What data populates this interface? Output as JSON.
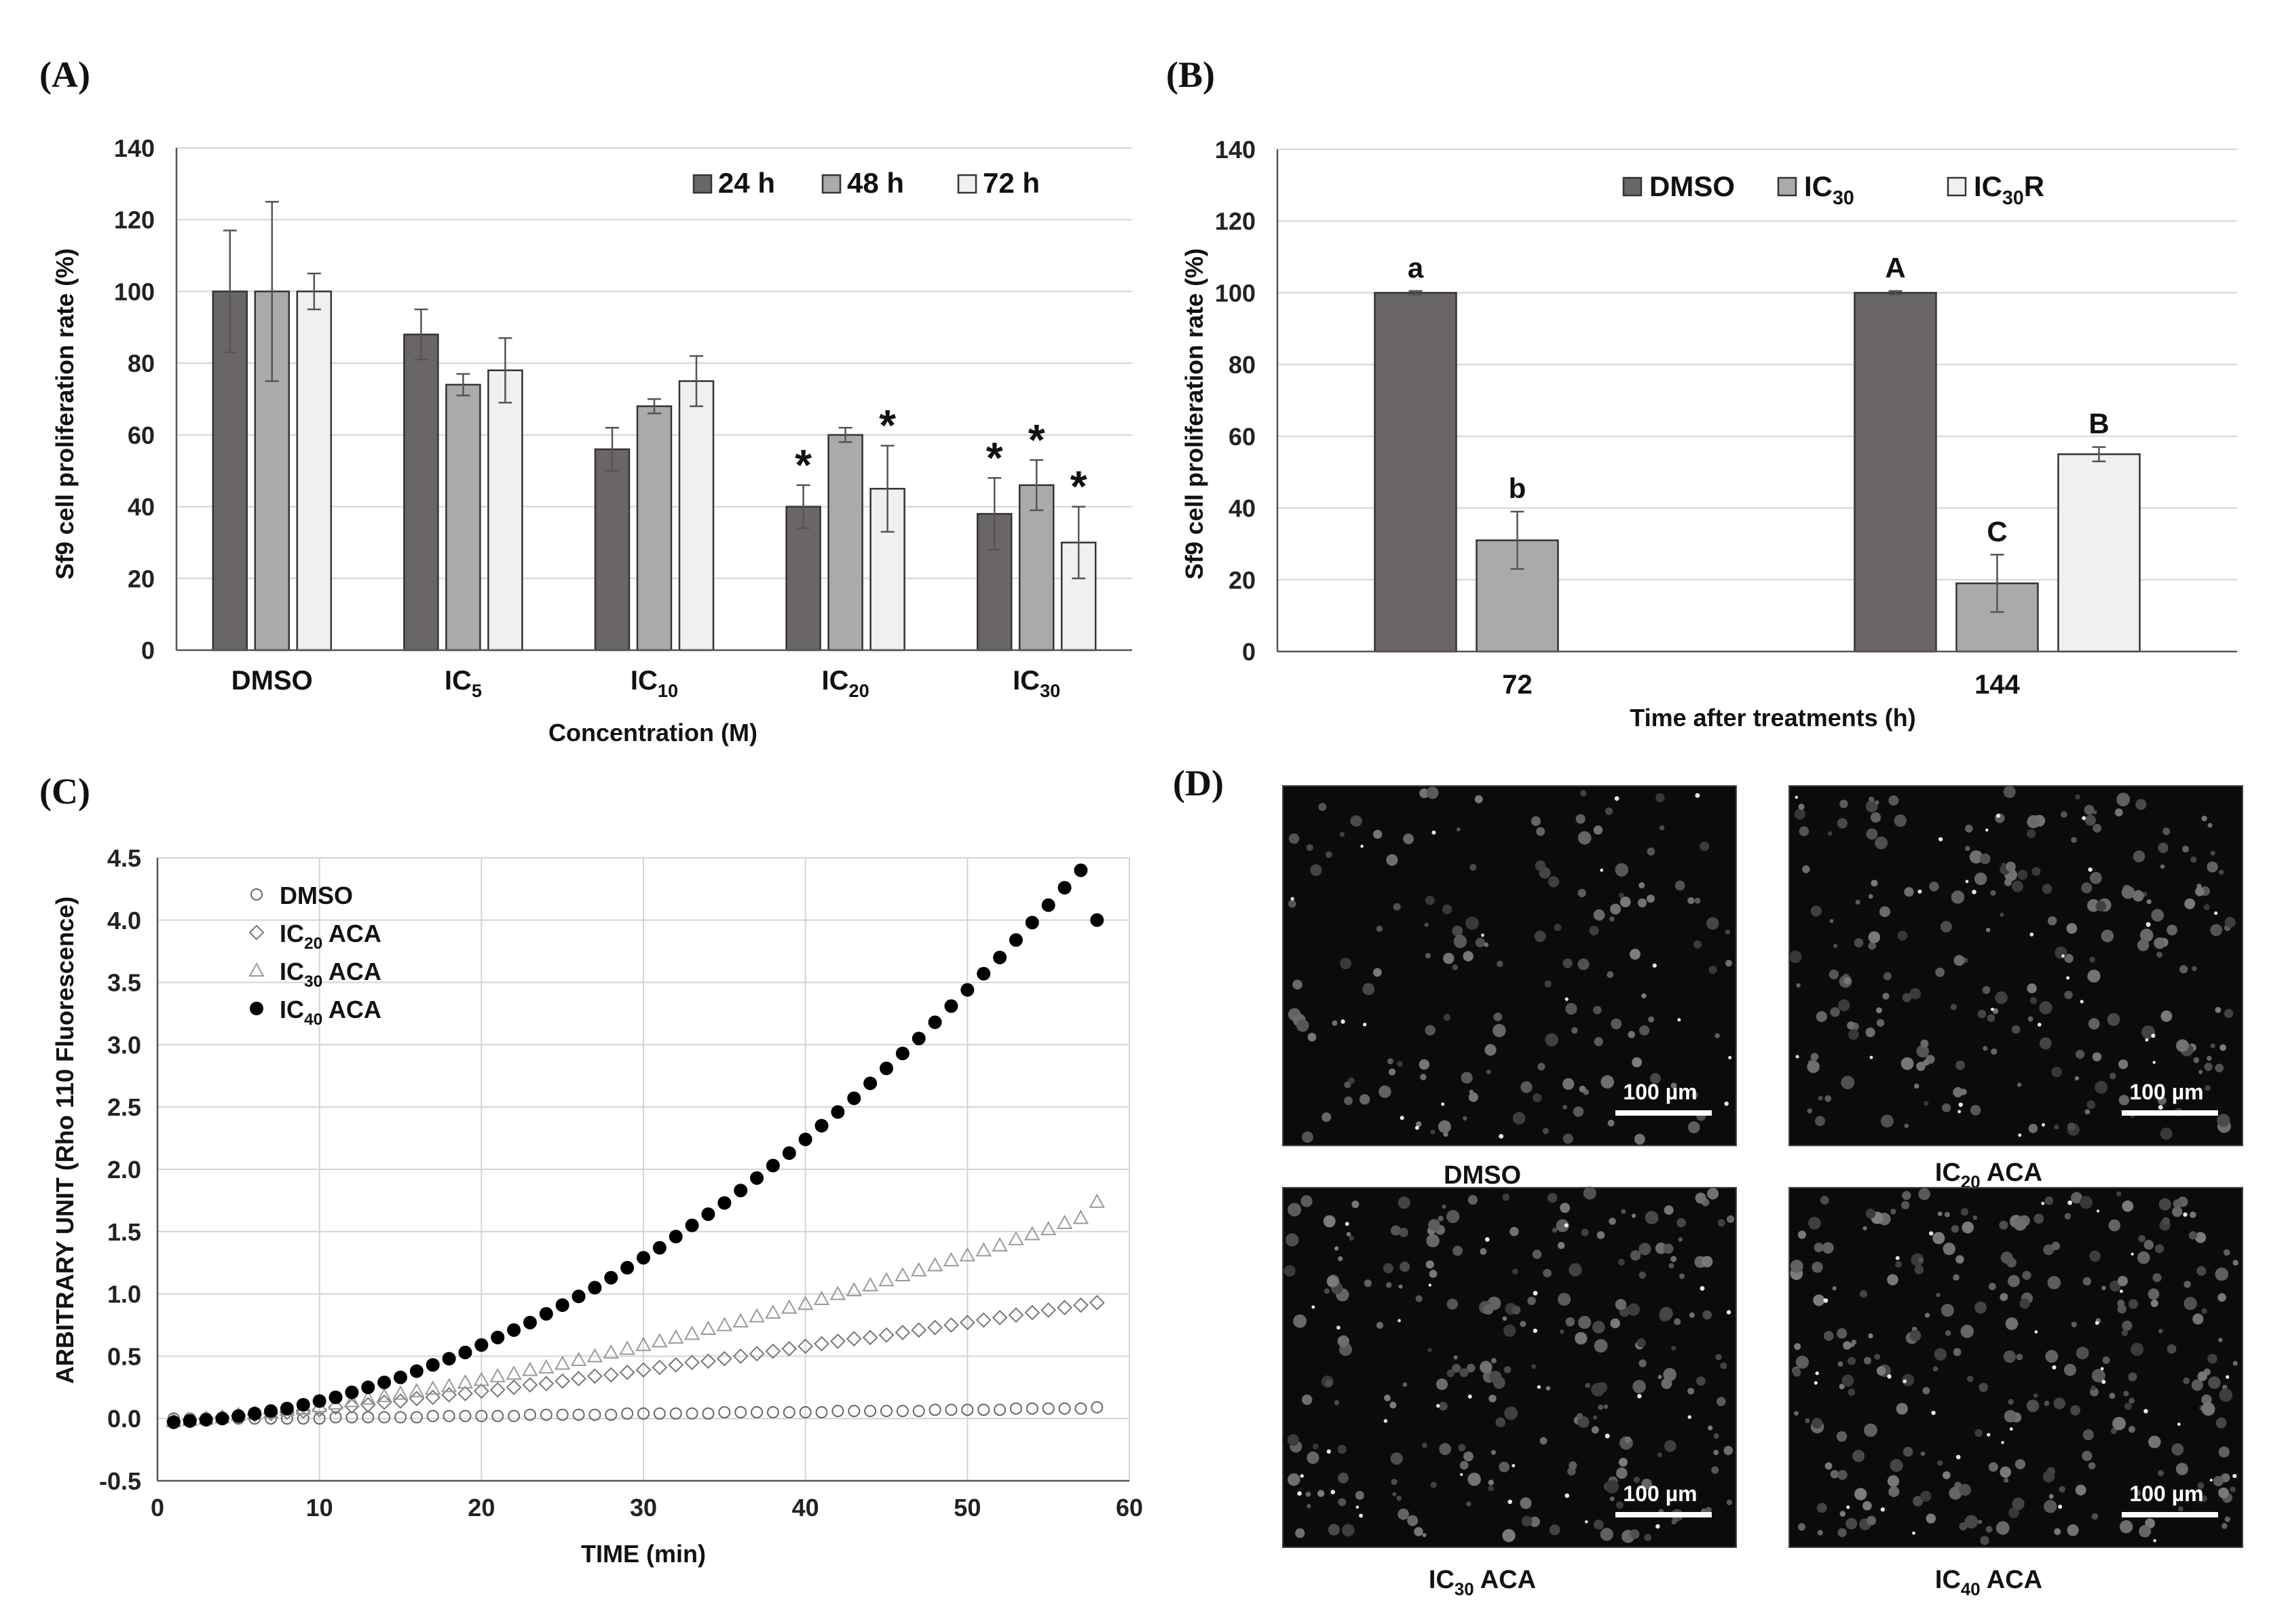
{
  "panels": {
    "a": {
      "label": "(A)"
    },
    "b": {
      "label": "(B)"
    },
    "c": {
      "label": "(C)"
    },
    "d": {
      "label": "(D)"
    }
  },
  "chart_data": [
    {
      "panel": "A",
      "type": "bar",
      "xlabel": "Concentration (M)",
      "ylabel": "Sf9 cell proliferation rate (%)",
      "ylim": [
        0,
        140
      ],
      "yticks": [
        0,
        20,
        40,
        60,
        80,
        100,
        120,
        140
      ],
      "categories": [
        {
          "base": "DMSO",
          "sub": ""
        },
        {
          "base": "IC",
          "sub": "5"
        },
        {
          "base": "IC",
          "sub": "10"
        },
        {
          "base": "IC",
          "sub": "20"
        },
        {
          "base": "IC",
          "sub": "30"
        }
      ],
      "series": [
        {
          "name": "24 h",
          "color": "#6b6666",
          "values": [
            100,
            88,
            56,
            40,
            38
          ],
          "errors": [
            17,
            7,
            6,
            6,
            10
          ],
          "significant": [
            false,
            false,
            false,
            true,
            true
          ]
        },
        {
          "name": "48 h",
          "color": "#aaaaaa",
          "values": [
            100,
            74,
            68,
            60,
            46
          ],
          "errors": [
            25,
            3,
            2,
            2,
            7
          ],
          "significant": [
            false,
            false,
            false,
            false,
            true
          ]
        },
        {
          "name": "72 h",
          "color": "#f0f0f0",
          "values": [
            100,
            78,
            75,
            45,
            30
          ],
          "errors": [
            5,
            9,
            7,
            12,
            10
          ],
          "significant": [
            false,
            false,
            false,
            true,
            true
          ]
        }
      ],
      "significance_marker": "*",
      "legend_position": "top-right"
    },
    {
      "panel": "B",
      "type": "bar",
      "xlabel": "Time after treatments (h)",
      "ylabel": "Sf9 cell proliferation rate (%)",
      "ylim": [
        0,
        140
      ],
      "yticks": [
        0,
        20,
        40,
        60,
        80,
        100,
        120,
        140
      ],
      "categories": [
        "72",
        "144"
      ],
      "series": [
        {
          "name": "DMSO",
          "name_base": "DMSO",
          "name_sub": "",
          "name_tail": "",
          "color": "#6b6666",
          "values": [
            100,
            100
          ],
          "errors": [
            0.5,
            0.5
          ],
          "letters": [
            "a",
            "A"
          ]
        },
        {
          "name": "IC30",
          "name_base": "IC",
          "name_sub": "30",
          "name_tail": "",
          "color": "#aaaaaa",
          "values": [
            31,
            19
          ],
          "errors": [
            8,
            8
          ],
          "letters": [
            "b",
            "C"
          ]
        },
        {
          "name": "IC30R",
          "name_base": "IC",
          "name_sub": "30",
          "name_tail": "R",
          "color": "#f0f0f0",
          "values": [
            null,
            55
          ],
          "errors": [
            null,
            2
          ],
          "letters": [
            "",
            "B"
          ]
        }
      ],
      "legend_position": "top"
    },
    {
      "panel": "C",
      "type": "scatter",
      "xlabel": "TIME (min)",
      "ylabel": "ARBITRARY UNIT (Rho 110 Fluorescence)",
      "xlim": [
        0,
        60
      ],
      "ylim": [
        -0.5,
        4.5
      ],
      "xticks": [
        0,
        10,
        20,
        30,
        40,
        50,
        60
      ],
      "yticks": [
        -0.5,
        0.0,
        0.5,
        1.0,
        1.5,
        2.0,
        2.5,
        3.0,
        3.5,
        4.0,
        4.5
      ],
      "x": [
        1,
        2,
        3,
        4,
        5,
        6,
        7,
        8,
        9,
        10,
        11,
        12,
        13,
        14,
        15,
        16,
        17,
        18,
        19,
        20,
        21,
        22,
        23,
        24,
        25,
        26,
        27,
        28,
        29,
        30,
        31,
        32,
        33,
        34,
        35,
        36,
        37,
        38,
        39,
        40,
        41,
        42,
        43,
        44,
        45,
        46,
        47,
        48,
        49,
        50,
        51,
        52,
        53,
        54,
        55,
        56,
        57,
        58
      ],
      "series": [
        {
          "name": "DMSO",
          "label_base": "DMSO",
          "label_sub": "",
          "label_tail": "",
          "marker": "circle-open",
          "y": [
            0.0,
            0.0,
            0.0,
            0.0,
            0.0,
            0.0,
            0.0,
            0.0,
            0.0,
            0.0,
            0.01,
            0.01,
            0.01,
            0.01,
            0.01,
            0.01,
            0.02,
            0.02,
            0.02,
            0.02,
            0.02,
            0.02,
            0.03,
            0.03,
            0.03,
            0.03,
            0.03,
            0.03,
            0.04,
            0.04,
            0.04,
            0.04,
            0.04,
            0.04,
            0.05,
            0.05,
            0.05,
            0.05,
            0.05,
            0.05,
            0.05,
            0.06,
            0.06,
            0.06,
            0.06,
            0.06,
            0.06,
            0.07,
            0.07,
            0.07,
            0.07,
            0.07,
            0.08,
            0.08,
            0.08,
            0.08,
            0.08,
            0.09
          ]
        },
        {
          "name": "IC20 ACA",
          "label_base": "IC",
          "label_sub": "20",
          "label_tail": " ACA",
          "marker": "diamond-open",
          "y": [
            -0.02,
            -0.01,
            0.0,
            0.01,
            0.02,
            0.03,
            0.04,
            0.05,
            0.06,
            0.07,
            0.09,
            0.1,
            0.11,
            0.13,
            0.14,
            0.16,
            0.17,
            0.19,
            0.2,
            0.22,
            0.23,
            0.25,
            0.27,
            0.28,
            0.3,
            0.32,
            0.34,
            0.35,
            0.37,
            0.39,
            0.41,
            0.43,
            0.45,
            0.46,
            0.48,
            0.5,
            0.52,
            0.54,
            0.56,
            0.58,
            0.6,
            0.62,
            0.64,
            0.65,
            0.67,
            0.69,
            0.71,
            0.73,
            0.75,
            0.77,
            0.79,
            0.81,
            0.83,
            0.85,
            0.87,
            0.89,
            0.91,
            0.93
          ]
        },
        {
          "name": "IC30 ACA",
          "label_base": "IC",
          "label_sub": "30",
          "label_tail": " ACA",
          "marker": "triangle-open",
          "y": [
            -0.02,
            -0.01,
            0.0,
            0.01,
            0.03,
            0.04,
            0.05,
            0.07,
            0.08,
            0.1,
            0.12,
            0.14,
            0.16,
            0.18,
            0.2,
            0.22,
            0.24,
            0.26,
            0.29,
            0.31,
            0.34,
            0.36,
            0.39,
            0.41,
            0.44,
            0.47,
            0.5,
            0.53,
            0.56,
            0.59,
            0.62,
            0.65,
            0.68,
            0.72,
            0.75,
            0.78,
            0.82,
            0.85,
            0.89,
            0.92,
            0.96,
            1.0,
            1.03,
            1.07,
            1.11,
            1.15,
            1.19,
            1.23,
            1.27,
            1.31,
            1.35,
            1.39,
            1.44,
            1.48,
            1.52,
            1.57,
            1.61,
            1.74
          ]
        },
        {
          "name": "IC40 ACA",
          "label_base": "IC",
          "label_sub": "40",
          "label_tail": " ACA",
          "marker": "circle-filled",
          "y": [
            -0.03,
            -0.02,
            -0.01,
            0.0,
            0.02,
            0.04,
            0.06,
            0.08,
            0.11,
            0.14,
            0.17,
            0.21,
            0.25,
            0.29,
            0.33,
            0.38,
            0.43,
            0.48,
            0.53,
            0.59,
            0.65,
            0.71,
            0.77,
            0.84,
            0.91,
            0.98,
            1.05,
            1.13,
            1.21,
            1.29,
            1.37,
            1.46,
            1.55,
            1.64,
            1.73,
            1.83,
            1.93,
            2.03,
            2.13,
            2.24,
            2.35,
            2.46,
            2.57,
            2.69,
            2.81,
            2.93,
            3.05,
            3.18,
            3.31,
            3.44,
            3.57,
            3.7,
            3.84,
            3.98,
            4.12,
            4.26,
            4.4,
            4.0
          ]
        }
      ],
      "legend_position": "top-left"
    }
  ],
  "micrographs": [
    {
      "label_base": "DMSO",
      "label_sub": "",
      "label_tail": "",
      "scale_bar": "100 µm",
      "density": 0.6
    },
    {
      "label_base": "IC",
      "label_sub": "20",
      "label_tail": " ACA",
      "scale_bar": "100 µm",
      "density": 0.9
    },
    {
      "label_base": "IC",
      "label_sub": "30",
      "label_tail": " ACA",
      "scale_bar": "100 µm",
      "density": 1.0
    },
    {
      "label_base": "IC",
      "label_sub": "40",
      "label_tail": " ACA",
      "scale_bar": "100 µm",
      "density": 1.1
    }
  ]
}
